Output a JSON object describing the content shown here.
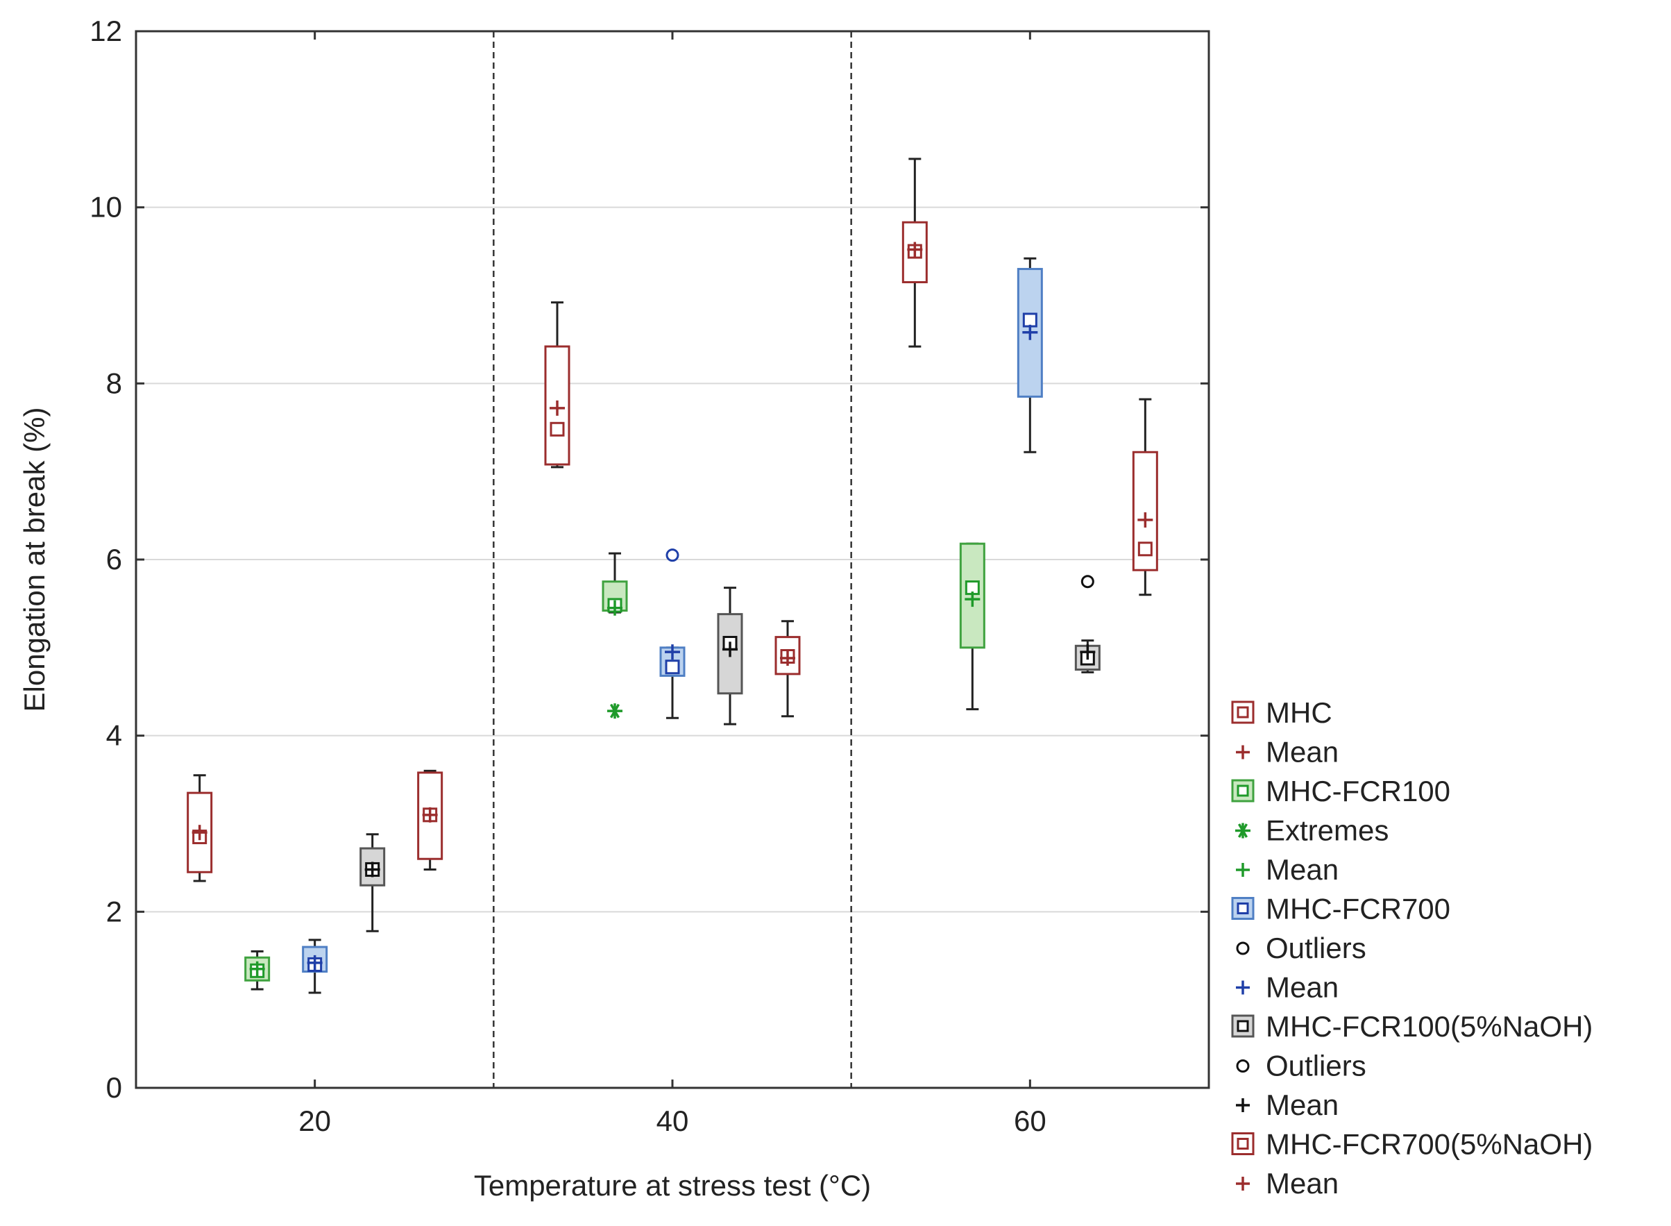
{
  "chart_data": {
    "type": "box",
    "xlabel": "Temperature at stress test (°C)",
    "ylabel": "Elongation at break (%)",
    "ylim": [
      0,
      12
    ],
    "yticks": [
      0,
      2,
      4,
      6,
      8,
      10,
      12
    ],
    "xtick_labels": [
      "20",
      "40",
      "60"
    ],
    "grid": "horizontal",
    "group_separators": "dashed vertical lines between temperatures",
    "legend_position": "bottom-right, outside plot",
    "groups": [
      {
        "temperature": "20",
        "boxes": [
          {
            "series": "MHC",
            "min": 2.35,
            "q1": 2.45,
            "median": 2.85,
            "q3": 3.35,
            "max": 3.55,
            "mean": 2.9
          },
          {
            "series": "MHC-FCR100",
            "min": 1.12,
            "q1": 1.22,
            "median": 1.33,
            "q3": 1.48,
            "max": 1.55,
            "mean": 1.35
          },
          {
            "series": "MHC-FCR700",
            "min": 1.08,
            "q1": 1.32,
            "median": 1.4,
            "q3": 1.6,
            "max": 1.68,
            "mean": 1.42
          },
          {
            "series": "MHC-FCR100(5%NaOH)",
            "min": 1.78,
            "q1": 2.3,
            "median": 2.48,
            "q3": 2.72,
            "max": 2.88,
            "mean": 2.48
          },
          {
            "series": "MHC-FCR700(5%NaOH)",
            "min": 2.48,
            "q1": 2.6,
            "median": 3.1,
            "q3": 3.58,
            "max": 3.6,
            "mean": 3.1
          }
        ]
      },
      {
        "temperature": "40",
        "boxes": [
          {
            "series": "MHC",
            "min": 7.05,
            "q1": 7.08,
            "median": 7.48,
            "q3": 8.42,
            "max": 8.92,
            "mean": 7.72
          },
          {
            "series": "MHC-FCR100",
            "min": 5.4,
            "q1": 5.42,
            "median": 5.48,
            "q3": 5.75,
            "max": 6.07,
            "mean": 5.45,
            "extremes": [
              4.28
            ]
          },
          {
            "series": "MHC-FCR700",
            "min": 4.2,
            "q1": 4.68,
            "median": 4.78,
            "q3": 5.0,
            "max": 5.0,
            "mean": 4.95,
            "outliers": [
              6.05
            ]
          },
          {
            "series": "MHC-FCR100(5%NaOH)",
            "min": 4.13,
            "q1": 4.48,
            "median": 5.05,
            "q3": 5.38,
            "max": 5.68,
            "mean": 4.98
          },
          {
            "series": "MHC-FCR700(5%NaOH)",
            "min": 4.22,
            "q1": 4.7,
            "median": 4.9,
            "q3": 5.12,
            "max": 5.3,
            "mean": 4.88
          }
        ]
      },
      {
        "temperature": "60",
        "boxes": [
          {
            "series": "MHC",
            "min": 8.42,
            "q1": 9.15,
            "median": 9.5,
            "q3": 9.83,
            "max": 10.55,
            "mean": 9.52
          },
          {
            "series": "MHC-FCR100",
            "min": 4.3,
            "q1": 5.0,
            "median": 5.68,
            "q3": 6.18,
            "max": 6.18,
            "mean": 5.55
          },
          {
            "series": "MHC-FCR700",
            "min": 7.22,
            "q1": 7.85,
            "median": 8.72,
            "q3": 9.3,
            "max": 9.42,
            "mean": 8.58
          },
          {
            "series": "MHC-FCR100(5%NaOH)",
            "min": 4.72,
            "q1": 4.75,
            "median": 4.88,
            "q3": 5.02,
            "max": 5.08,
            "mean": 4.95,
            "outliers": [
              5.75
            ]
          },
          {
            "series": "MHC-FCR700(5%NaOH)",
            "min": 5.6,
            "q1": 5.88,
            "median": 6.12,
            "q3": 7.22,
            "max": 7.82,
            "mean": 6.45
          }
        ]
      }
    ],
    "series_style": [
      {
        "name": "MHC",
        "stroke": "#9b2d2d",
        "fill": "#ffffff",
        "marker_color": "#9b2d2d"
      },
      {
        "name": "MHC-FCR100",
        "stroke": "#3fa23f",
        "fill": "#c9e8c0",
        "marker_color": "#1f9a2a"
      },
      {
        "name": "MHC-FCR700",
        "stroke": "#4f7fc4",
        "fill": "#bcd3ef",
        "marker_color": "#1f3fa8"
      },
      {
        "name": "MHC-FCR100(5%NaOH)",
        "stroke": "#555555",
        "fill": "#d6d6d6",
        "marker_color": "#111111"
      },
      {
        "name": "MHC-FCR700(5%NaOH)",
        "stroke": "#9b2d2d",
        "fill": "#ffffff",
        "marker_color": "#9b2d2d"
      }
    ],
    "legend": [
      {
        "label": "MHC",
        "symbol": "box",
        "series": "MHC"
      },
      {
        "label": "Mean",
        "symbol": "plus",
        "series": "MHC"
      },
      {
        "label": "MHC-FCR100",
        "symbol": "box",
        "series": "MHC-FCR100"
      },
      {
        "label": "Extremes",
        "symbol": "star",
        "series": "MHC-FCR100"
      },
      {
        "label": "Mean",
        "symbol": "plus",
        "series": "MHC-FCR100"
      },
      {
        "label": "MHC-FCR700",
        "symbol": "box",
        "series": "MHC-FCR700"
      },
      {
        "label": "Outliers",
        "symbol": "circle",
        "series": "MHC-FCR700"
      },
      {
        "label": "Mean",
        "symbol": "plus",
        "series": "MHC-FCR700"
      },
      {
        "label": "MHC-FCR100(5%NaOH)",
        "symbol": "box",
        "series": "MHC-FCR100(5%NaOH)"
      },
      {
        "label": "Outliers",
        "symbol": "circle",
        "series": "MHC-FCR100(5%NaOH)"
      },
      {
        "label": "Mean",
        "symbol": "plus",
        "series": "MHC-FCR100(5%NaOH)"
      },
      {
        "label": "MHC-FCR700(5%NaOH)",
        "symbol": "box",
        "series": "MHC-FCR700(5%NaOH)"
      },
      {
        "label": "Mean",
        "symbol": "plus",
        "series": "MHC-FCR700(5%NaOH)"
      }
    ]
  }
}
